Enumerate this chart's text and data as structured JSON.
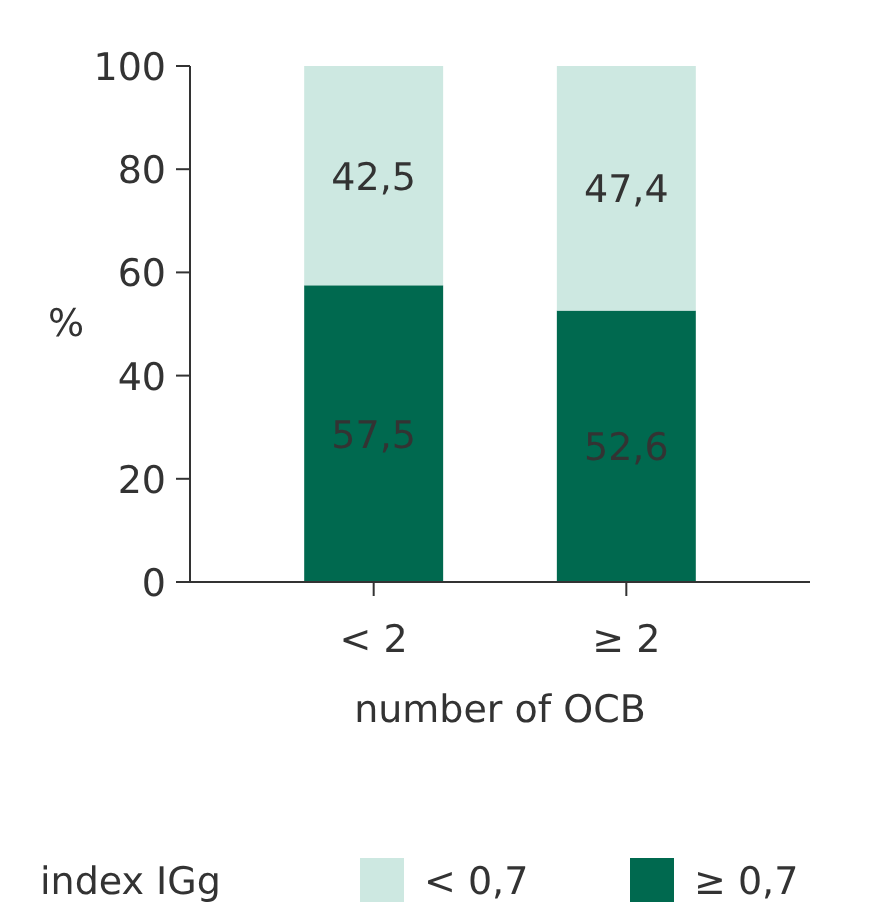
{
  "chart_data": {
    "type": "bar",
    "stacked": true,
    "categories": [
      "< 2",
      "≥ 2"
    ],
    "series": [
      {
        "name": "≥ 0,7",
        "color": "#00694f",
        "values": [
          57.5,
          52.6
        ],
        "value_labels": [
          "57,5",
          "52,6"
        ]
      },
      {
        "name": "< 0,7",
        "color": "#cde8e1",
        "values": [
          42.5,
          47.4
        ],
        "value_labels": [
          "42,5",
          "47,4"
        ]
      }
    ],
    "xlabel": "number of OCB",
    "ylabel": "%",
    "legend_title": "index IGg",
    "legend": "bottom",
    "ylim": [
      0,
      100
    ],
    "yticks": [
      0,
      20,
      40,
      60,
      80,
      100
    ],
    "grid": false
  }
}
